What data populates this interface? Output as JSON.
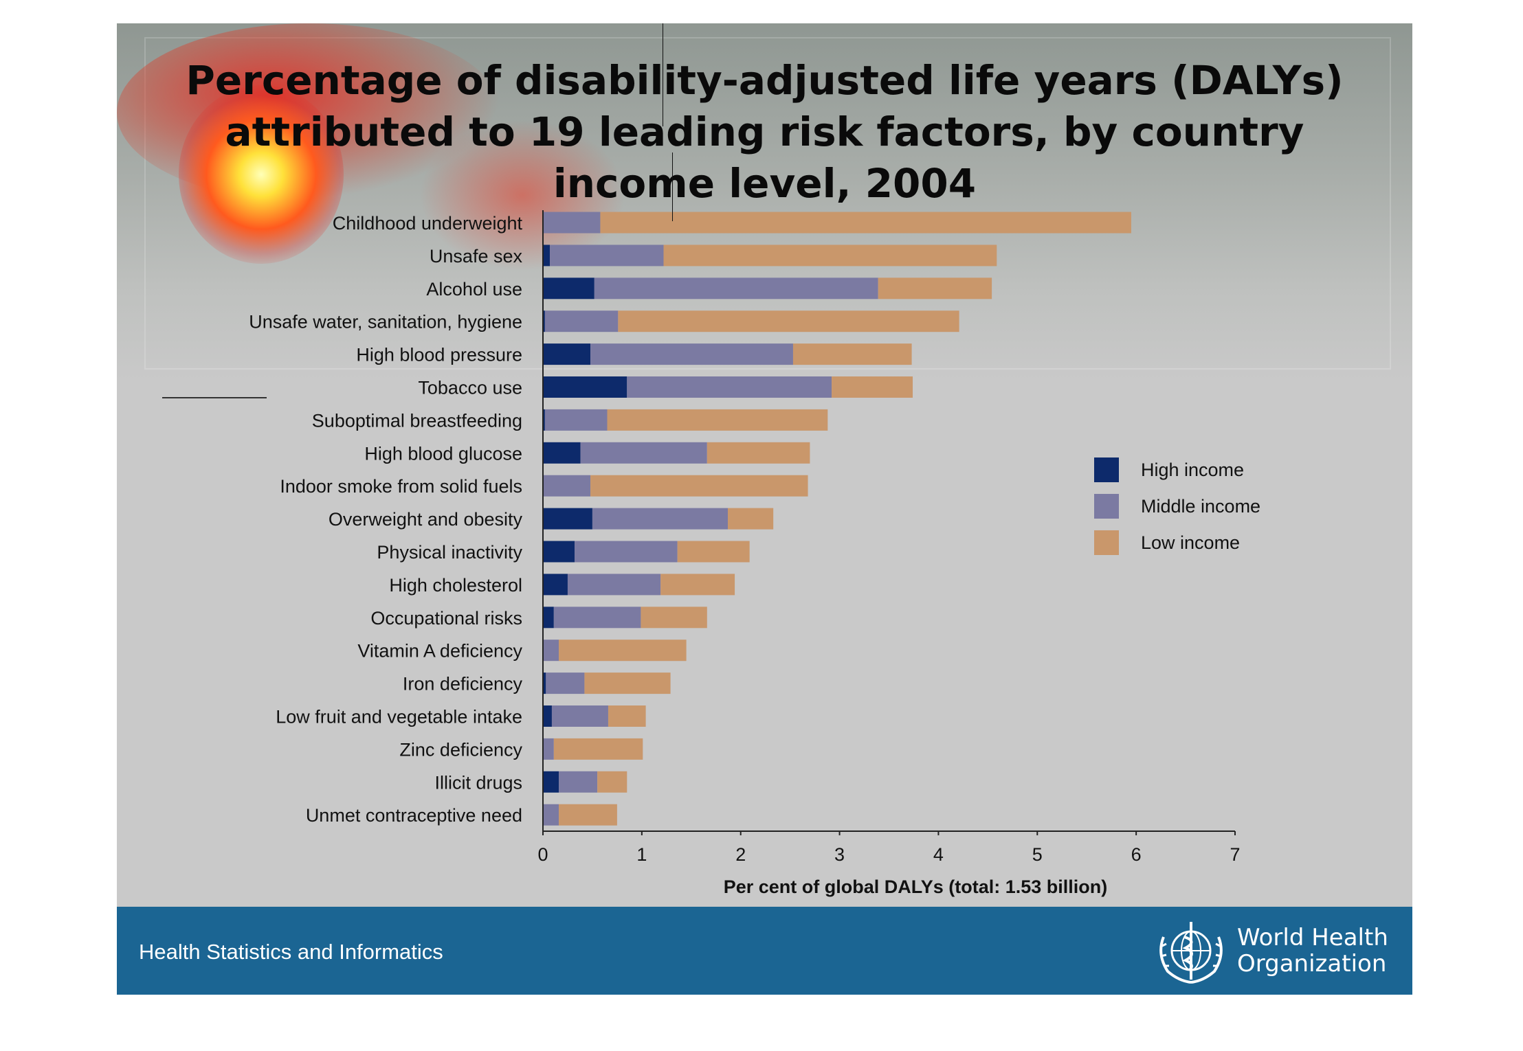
{
  "slide": {
    "title": "Percentage of disability-adjusted life years (DALYs)\nattributed to 19 leading risk factors, by country\nincome level, 2004",
    "footer_text": "Health Statistics and Informatics",
    "org_name": "World Health\nOrganization",
    "background_color": "#c9c9c9",
    "footer_color": "#1b6593"
  },
  "chart_data": {
    "type": "bar",
    "orientation": "horizontal",
    "stacked": true,
    "title": "",
    "xlabel": "Per cent of global DALYs (total: 1.53 billion)",
    "ylabel": "",
    "xlim": [
      0,
      7
    ],
    "xticks": [
      0,
      1,
      2,
      3,
      4,
      5,
      6,
      7
    ],
    "grid": false,
    "legend_position": "right",
    "categories": [
      "Childhood underweight",
      "Unsafe sex",
      "Alcohol use",
      "Unsafe water, sanitation, hygiene",
      "High blood pressure",
      "Tobacco use",
      "Suboptimal breastfeeding",
      "High blood glucose",
      "Indoor smoke from solid fuels",
      "Overweight and obesity",
      "Physical inactivity",
      "High cholesterol",
      "Occupational risks",
      "Vitamin A deficiency",
      "Iron deficiency",
      "Low fruit and vegetable intake",
      "Zinc deficiency",
      "Illicit drugs",
      "Unmet contraceptive need"
    ],
    "series": [
      {
        "name": "High income",
        "color": "#0d2a6b",
        "values": [
          0.0,
          0.07,
          0.52,
          0.02,
          0.48,
          0.85,
          0.02,
          0.38,
          0.0,
          0.5,
          0.32,
          0.25,
          0.11,
          0.0,
          0.03,
          0.09,
          0.0,
          0.16,
          0.0
        ]
      },
      {
        "name": "Middle income",
        "color": "#7b7aa2",
        "values": [
          0.58,
          1.15,
          2.87,
          0.74,
          2.05,
          2.07,
          0.63,
          1.28,
          0.48,
          1.37,
          1.04,
          0.94,
          0.88,
          0.16,
          0.39,
          0.57,
          0.11,
          0.39,
          0.16
        ]
      },
      {
        "name": "Low income",
        "color": "#c9976b",
        "values": [
          5.37,
          3.37,
          1.15,
          3.45,
          1.2,
          0.82,
          2.23,
          1.04,
          2.2,
          0.46,
          0.73,
          0.75,
          0.67,
          1.29,
          0.87,
          0.38,
          0.9,
          0.3,
          0.59
        ]
      }
    ]
  }
}
